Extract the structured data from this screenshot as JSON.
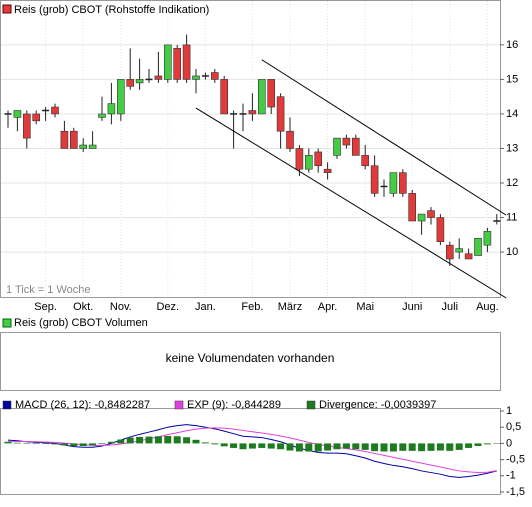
{
  "chart_data": [
    {
      "type": "candlestick",
      "title": "Reis (grob) CBOT (Rohstoffe Indikation)",
      "note": "1 Tick = 1 Woche",
      "categories": [
        null,
        null,
        null,
        null,
        "Sep.",
        null,
        null,
        null,
        "Okt.",
        null,
        null,
        null,
        "Nov.",
        null,
        null,
        null,
        null,
        "Dez.",
        null,
        null,
        null,
        "Jan.",
        null,
        null,
        null,
        null,
        "Feb.",
        null,
        null,
        null,
        "März",
        null,
        null,
        null,
        "Apr.",
        null,
        null,
        null,
        "Mai",
        null,
        null,
        null,
        null,
        "Juni",
        null,
        null,
        null,
        "Juli",
        null,
        null,
        null,
        "Aug.",
        null
      ],
      "open": [
        14.0,
        13.9,
        14.0,
        14.0,
        14.1,
        14.2,
        13.5,
        13.5,
        13.0,
        13.0,
        13.9,
        14.0,
        14.0,
        15.0,
        14.9,
        15.0,
        15.1,
        15.0,
        15.9,
        16.0,
        15.0,
        15.1,
        15.2,
        15.0,
        14.0,
        14.0,
        14.1,
        14.0,
        15.0,
        14.5,
        13.5,
        13.0,
        12.4,
        12.9,
        12.4,
        12.8,
        13.3,
        13.3,
        12.8,
        12.5,
        11.9,
        11.7,
        12.3,
        11.7,
        10.9,
        11.2,
        11.0,
        10.2,
        10.0,
        9.95,
        9.9,
        10.2,
        10.9
      ],
      "high": [
        14.1,
        14.1,
        14.1,
        14.1,
        14.2,
        14.3,
        13.8,
        13.6,
        13.3,
        13.5,
        14.5,
        14.9,
        15.0,
        15.9,
        15.6,
        15.3,
        15.8,
        16.0,
        16.0,
        16.3,
        15.3,
        15.2,
        15.3,
        15.1,
        14.1,
        14.3,
        14.6,
        15.0,
        15.0,
        14.6,
        13.9,
        13.1,
        13.0,
        13.0,
        12.6,
        13.3,
        13.4,
        13.4,
        13.1,
        12.8,
        12.1,
        12.3,
        12.4,
        11.8,
        11.1,
        11.3,
        11.1,
        10.3,
        10.4,
        10.1,
        10.4,
        10.7,
        11.1
      ],
      "low": [
        13.6,
        13.5,
        13.0,
        13.7,
        13.8,
        13.9,
        13.0,
        13.0,
        12.9,
        13.0,
        13.8,
        13.7,
        13.8,
        14.7,
        14.7,
        14.9,
        14.9,
        14.9,
        14.9,
        14.9,
        14.6,
        15.0,
        14.9,
        14.0,
        13.0,
        13.5,
        13.8,
        14.0,
        14.0,
        13.0,
        12.9,
        12.2,
        12.3,
        12.3,
        12.1,
        12.7,
        13.0,
        12.8,
        12.4,
        11.6,
        11.6,
        11.6,
        11.6,
        10.9,
        10.5,
        10.8,
        10.2,
        9.6,
        9.8,
        9.8,
        9.9,
        10.0,
        10.8
      ],
      "close": [
        14.0,
        14.1,
        13.3,
        13.8,
        14.1,
        14.0,
        13.0,
        13.0,
        13.1,
        13.1,
        14.0,
        14.3,
        15.0,
        14.8,
        15.0,
        15.0,
        15.0,
        16.0,
        15.0,
        15.0,
        15.1,
        15.1,
        15.0,
        14.0,
        14.0,
        14.0,
        14.0,
        15.0,
        14.2,
        13.5,
        13.0,
        12.4,
        12.8,
        12.5,
        12.3,
        13.3,
        13.1,
        12.8,
        12.5,
        11.7,
        11.9,
        12.3,
        11.7,
        10.9,
        11.1,
        11.0,
        10.3,
        9.8,
        10.1,
        9.8,
        10.4,
        10.6,
        10.9
      ],
      "up_color": "#44cc44",
      "down_color": "#e03a3a",
      "trendlines": [
        {
          "x": [
            27,
            53
          ],
          "y": [
            15.57,
            11.07
          ]
        },
        {
          "x": [
            20,
            53
          ],
          "y": [
            14.17,
            8.67
          ]
        }
      ],
      "ylim": [
        8.67,
        17.3
      ],
      "yticks": [
        10,
        11,
        12,
        13,
        14,
        15,
        16
      ],
      "grid": true
    },
    {
      "type": "empty",
      "title": "Reis (grob) CBOT Volumen",
      "message": "keine Volumendaten vorhanden"
    },
    {
      "type": "macd",
      "series": [
        {
          "name": "MACD (26, 12): -0,8482287",
          "color": "#0000a0",
          "style": "line",
          "values": [
            0.1,
            0.08,
            0.05,
            0.03,
            0.02,
            0.0,
            -0.05,
            -0.1,
            -0.12,
            -0.12,
            -0.08,
            0.0,
            0.1,
            0.2,
            0.28,
            0.35,
            0.42,
            0.5,
            0.55,
            0.58,
            0.55,
            0.5,
            0.45,
            0.38,
            0.3,
            0.22,
            0.2,
            0.18,
            0.12,
            0.05,
            -0.05,
            -0.15,
            -0.22,
            -0.28,
            -0.3,
            -0.3,
            -0.32,
            -0.38,
            -0.45,
            -0.55,
            -0.62,
            -0.68,
            -0.72,
            -0.78,
            -0.85,
            -0.9,
            -0.95,
            -1.02,
            -1.05,
            -1.02,
            -0.98,
            -0.92,
            -0.85
          ]
        },
        {
          "name": "EXP (9): -0,844289",
          "color": "#e040e0",
          "style": "line",
          "values": [
            0.05,
            0.06,
            0.06,
            0.05,
            0.04,
            0.03,
            0.01,
            -0.02,
            -0.04,
            -0.06,
            -0.06,
            -0.05,
            -0.02,
            0.02,
            0.08,
            0.14,
            0.2,
            0.27,
            0.33,
            0.39,
            0.44,
            0.47,
            0.48,
            0.47,
            0.44,
            0.4,
            0.36,
            0.32,
            0.28,
            0.23,
            0.17,
            0.1,
            0.03,
            -0.03,
            -0.08,
            -0.12,
            -0.16,
            -0.2,
            -0.25,
            -0.31,
            -0.37,
            -0.43,
            -0.49,
            -0.55,
            -0.61,
            -0.67,
            -0.73,
            -0.79,
            -0.85,
            -0.88,
            -0.9,
            -0.89,
            -0.84
          ]
        },
        {
          "name": "Divergence: -0,0039397",
          "color": "#1e7a1e",
          "style": "bar",
          "values": [
            0.05,
            0.02,
            -0.01,
            -0.02,
            -0.02,
            -0.03,
            -0.06,
            -0.08,
            -0.08,
            -0.06,
            -0.02,
            0.05,
            0.12,
            0.18,
            0.2,
            0.21,
            0.22,
            0.23,
            0.22,
            0.19,
            0.11,
            0.03,
            -0.03,
            -0.09,
            -0.14,
            -0.18,
            -0.16,
            -0.14,
            -0.16,
            -0.18,
            -0.22,
            -0.25,
            -0.25,
            -0.25,
            -0.22,
            -0.18,
            -0.16,
            -0.18,
            -0.2,
            -0.24,
            -0.25,
            -0.25,
            -0.23,
            -0.23,
            -0.24,
            -0.23,
            -0.22,
            -0.23,
            -0.2,
            -0.14,
            -0.08,
            -0.03,
            -0.01
          ]
        }
      ],
      "ylim": [
        -1.5,
        1
      ],
      "yticks": [
        1,
        {
          "value": 0.5,
          "label": "0,5"
        },
        0,
        {
          "value": -0.5,
          "label": "-0,5"
        },
        -1,
        {
          "value": -1.5,
          "label": "-1,5"
        }
      ]
    }
  ]
}
